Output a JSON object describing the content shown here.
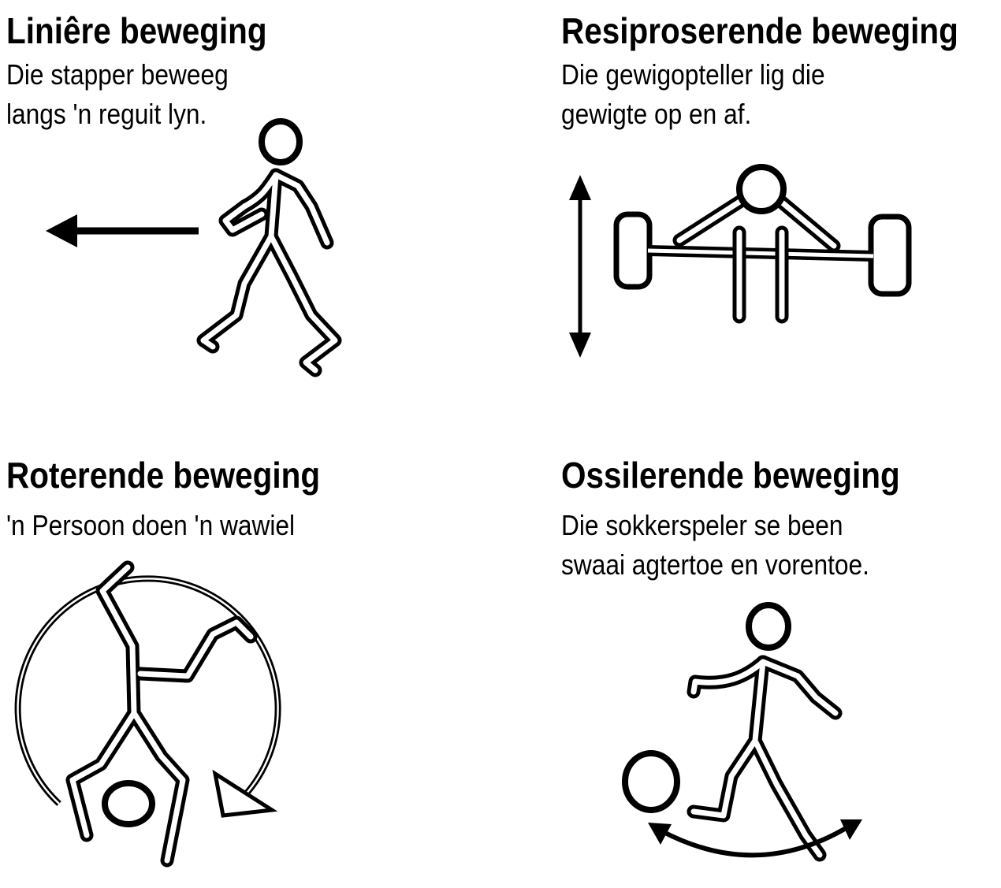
{
  "panels": [
    {
      "title": "Liniêre beweging",
      "lines": [
        "Die stapper beweeg",
        "langs 'n reguit lyn."
      ],
      "icon": "walking-figure-icon"
    },
    {
      "title": "Resiproserende beweging",
      "lines": [
        "Die gewigopteller lig die",
        "gewigte op en af."
      ],
      "icon": "weightlifter-icon"
    },
    {
      "title": "Roterende beweging",
      "lines": [
        "'n Persoon doen 'n wawiel"
      ],
      "icon": "cartwheel-figure-icon"
    },
    {
      "title": "Ossilerende beweging",
      "lines": [
        "Die sokkerspeler se been",
        "swaai agtertoe en vorentoe."
      ],
      "icon": "soccer-player-icon"
    }
  ]
}
